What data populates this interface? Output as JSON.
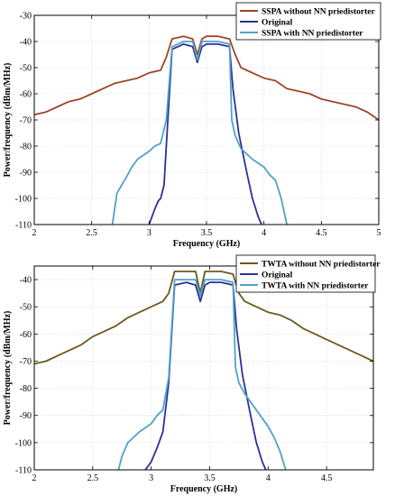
{
  "chart_data": [
    {
      "type": "line",
      "title": "",
      "xlabel": "Frequency (GHz)",
      "ylabel": "Power/frequency (dBm/MHz)",
      "xlim": [
        2,
        5
      ],
      "ylim": [
        -110,
        -30
      ],
      "x_ticks": [
        2,
        2.5,
        3,
        3.5,
        4,
        4.5,
        5
      ],
      "x_tick_labels": [
        "2",
        "2.5",
        "3",
        "3.5",
        "4",
        "4.5",
        "5"
      ],
      "y_ticks": [
        -110,
        -100,
        -90,
        -80,
        -70,
        -60,
        -50,
        -40,
        -30
      ],
      "y_tick_labels": [
        "-110",
        "-100",
        "-90",
        "-80",
        "-70",
        "-60",
        "-50",
        "-40",
        "-30"
      ],
      "legend_position": "top-right",
      "grid": true,
      "series": [
        {
          "name": "SSPA without NN priedistorter",
          "color": "#a0452a",
          "x": [
            2.0,
            2.1,
            2.2,
            2.3,
            2.4,
            2.5,
            2.6,
            2.7,
            2.8,
            2.9,
            3.0,
            3.1,
            3.15,
            3.2,
            3.3,
            3.38,
            3.42,
            3.46,
            3.5,
            3.6,
            3.7,
            3.75,
            3.8,
            3.9,
            4.0,
            4.1,
            4.2,
            4.3,
            4.4,
            4.5,
            4.6,
            4.7,
            4.8,
            4.9,
            5.0
          ],
          "y": [
            -68,
            -67,
            -65,
            -63,
            -62,
            -60,
            -58,
            -56,
            -55,
            -54,
            -52,
            -51,
            -46,
            -39,
            -38,
            -39,
            -45,
            -39,
            -38,
            -38,
            -39,
            -45,
            -50,
            -52,
            -54,
            -55,
            -58,
            -59,
            -60,
            -62,
            -63,
            -64,
            -65,
            -67,
            -70
          ]
        },
        {
          "name": "Original",
          "color": "#2a3296",
          "x": [
            3.0,
            3.05,
            3.08,
            3.1,
            3.13,
            3.15,
            3.2,
            3.3,
            3.38,
            3.42,
            3.46,
            3.5,
            3.6,
            3.7,
            3.73,
            3.78,
            3.85,
            3.9,
            3.95,
            3.98
          ],
          "y": [
            -110,
            -104,
            -101,
            -100,
            -95,
            -80,
            -43,
            -41,
            -42,
            -48,
            -42,
            -41,
            -41,
            -42,
            -58,
            -75,
            -90,
            -100,
            -107,
            -110
          ]
        },
        {
          "name": "SSPA with NN priedistorter",
          "color": "#4fa3c6",
          "x": [
            2.68,
            2.72,
            2.8,
            2.85,
            2.9,
            3.0,
            3.05,
            3.1,
            3.15,
            3.2,
            3.3,
            3.38,
            3.42,
            3.46,
            3.5,
            3.6,
            3.7,
            3.72,
            3.75,
            3.8,
            3.9,
            4.0,
            4.05,
            4.1,
            4.15,
            4.2
          ],
          "y": [
            -110,
            -98,
            -92,
            -88,
            -85,
            -82,
            -80,
            -79,
            -70,
            -42,
            -40,
            -40,
            -47,
            -40,
            -40,
            -40,
            -41,
            -70,
            -76,
            -81,
            -85,
            -88,
            -91,
            -93,
            -100,
            -110
          ]
        }
      ]
    },
    {
      "type": "line",
      "title": "",
      "xlabel": "Frequency (GHz)",
      "ylabel": "Power/frequency (dBm/MHz)",
      "xlim": [
        2,
        4.9
      ],
      "ylim": [
        -110,
        -35
      ],
      "x_ticks": [
        2,
        2.5,
        3,
        3.5,
        4,
        4.5
      ],
      "x_tick_labels": [
        "2",
        "2.5",
        "3",
        "3.5",
        "4",
        "4.5"
      ],
      "y_ticks": [
        -110,
        -100,
        -90,
        -80,
        -70,
        -60,
        -50,
        -40
      ],
      "y_tick_labels": [
        "-110",
        "-100",
        "-90",
        "-80",
        "-70",
        "-60",
        "-50",
        "-40"
      ],
      "legend_position": "top-right",
      "grid": true,
      "series": [
        {
          "name": "TWTA without NN priedistorter",
          "color": "#6b5a1e",
          "x": [
            2.0,
            2.1,
            2.2,
            2.3,
            2.4,
            2.5,
            2.6,
            2.7,
            2.8,
            2.9,
            3.0,
            3.1,
            3.15,
            3.2,
            3.3,
            3.38,
            3.42,
            3.46,
            3.5,
            3.6,
            3.7,
            3.75,
            3.8,
            3.9,
            4.0,
            4.1,
            4.2,
            4.3,
            4.4,
            4.5,
            4.6,
            4.7,
            4.8,
            4.9
          ],
          "y": [
            -71,
            -70,
            -68,
            -66,
            -64,
            -61,
            -59,
            -57,
            -54,
            -52,
            -50,
            -48,
            -45,
            -37,
            -37,
            -37,
            -45,
            -37,
            -37,
            -37,
            -38,
            -45,
            -48,
            -50,
            -52,
            -53,
            -55,
            -58,
            -60,
            -62,
            -64,
            -66,
            -68,
            -70
          ]
        },
        {
          "name": "Original",
          "color": "#2a3296",
          "x": [
            2.95,
            3.0,
            3.05,
            3.1,
            3.15,
            3.2,
            3.3,
            3.38,
            3.42,
            3.46,
            3.5,
            3.6,
            3.7,
            3.73,
            3.78,
            3.85,
            3.9,
            3.95,
            3.98
          ],
          "y": [
            -110,
            -107,
            -102,
            -96,
            -78,
            -42,
            -41,
            -42,
            -48,
            -42,
            -41,
            -41,
            -42,
            -58,
            -75,
            -90,
            -100,
            -107,
            -110
          ]
        },
        {
          "name": "TWTA with NN priedistorter",
          "color": "#4fa3c6",
          "x": [
            2.72,
            2.75,
            2.8,
            2.9,
            3.0,
            3.05,
            3.1,
            3.15,
            3.2,
            3.3,
            3.38,
            3.42,
            3.46,
            3.5,
            3.6,
            3.7,
            3.72,
            3.75,
            3.8,
            3.9,
            4.0,
            4.05,
            4.1,
            4.15
          ],
          "y": [
            -110,
            -105,
            -100,
            -96,
            -93,
            -90,
            -88,
            -76,
            -40,
            -40,
            -40,
            -46,
            -40,
            -40,
            -40,
            -41,
            -72,
            -78,
            -82,
            -88,
            -94,
            -98,
            -103,
            -110
          ]
        }
      ]
    }
  ]
}
